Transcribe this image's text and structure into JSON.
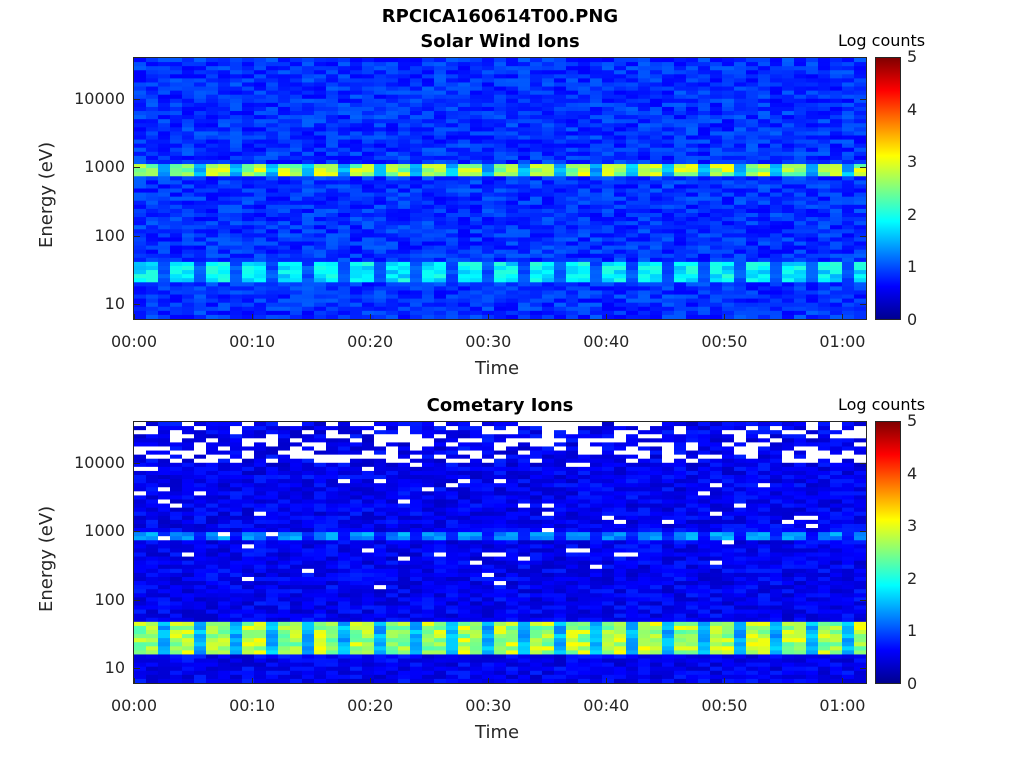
{
  "figure_title": "RPCICA160614T00.PNG",
  "colorbar_label": "Log counts",
  "colorbar_ticks": [
    "5",
    "4",
    "3",
    "2",
    "1",
    "0"
  ],
  "chart_data": [
    {
      "type": "heatmap",
      "title": "Solar Wind Ions",
      "xlabel": "Time",
      "ylabel": "Energy (eV)",
      "x_ticks": [
        "00:00",
        "00:10",
        "00:20",
        "00:30",
        "00:40",
        "00:50",
        "01:00"
      ],
      "xlim": [
        "00:00",
        "01:02"
      ],
      "y_ticks": [
        "10",
        "100",
        "1000",
        "10000"
      ],
      "ylim": [
        6,
        40000
      ],
      "y_scale": "log",
      "colorbar": {
        "label": "Log counts",
        "range": [
          0,
          5
        ],
        "colormap": "jet"
      },
      "bands": [
        {
          "energy_eV": [
            700,
            1100
          ],
          "peak_log_counts": 3.0,
          "pulsed": true
        },
        {
          "energy_eV": [
            20,
            40
          ],
          "peak_log_counts": 2.0,
          "pulsed": true
        }
      ],
      "background_log_counts": 0.6
    },
    {
      "type": "heatmap",
      "title": "Cometary Ions",
      "xlabel": "Time",
      "ylabel": "Energy (eV)",
      "x_ticks": [
        "00:00",
        "00:10",
        "00:20",
        "00:30",
        "00:40",
        "00:50",
        "01:00"
      ],
      "xlim": [
        "00:00",
        "01:02"
      ],
      "y_ticks": [
        "10",
        "100",
        "1000",
        "10000"
      ],
      "ylim": [
        6,
        40000
      ],
      "y_scale": "log",
      "colorbar": {
        "label": "Log counts",
        "range": [
          0,
          5
        ],
        "colormap": "jet"
      },
      "bands": [
        {
          "energy_eV": [
            700,
            1000
          ],
          "peak_log_counts": 1.5,
          "pulsed": true
        },
        {
          "energy_eV": [
            15,
            50
          ],
          "peak_log_counts": 3.0,
          "pulsed": true
        }
      ],
      "background_log_counts": 0.3,
      "sparse_high_energy_above_eV": 10000
    }
  ]
}
